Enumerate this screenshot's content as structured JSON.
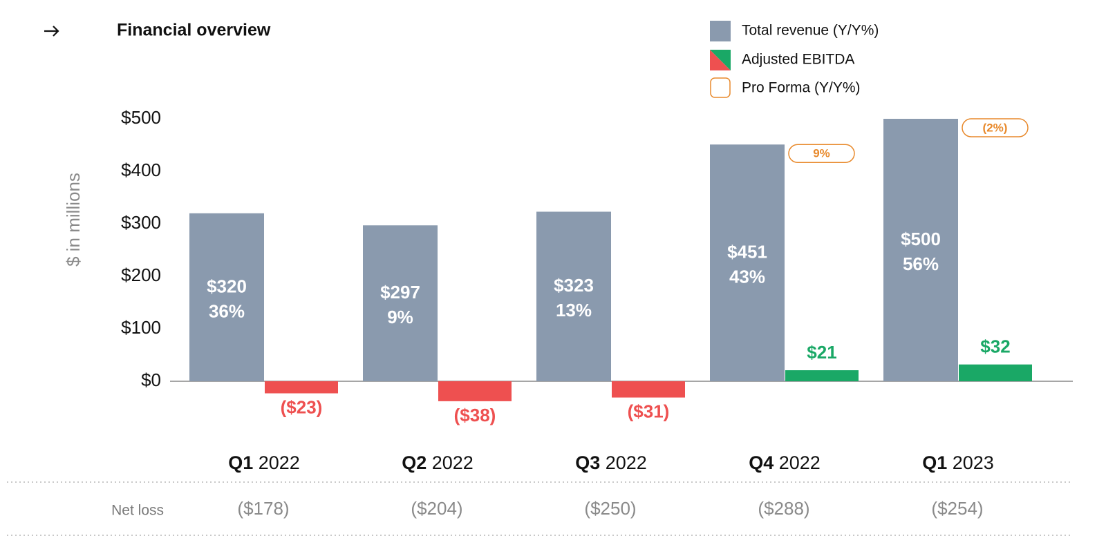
{
  "chart_data": {
    "type": "bar",
    "title": "Financial overview",
    "y_label": "$ in millions",
    "categories": [
      {
        "quarter": "Q1",
        "year": "2022"
      },
      {
        "quarter": "Q2",
        "year": "2022"
      },
      {
        "quarter": "Q3",
        "year": "2022"
      },
      {
        "quarter": "Q4",
        "year": "2022"
      },
      {
        "quarter": "Q1",
        "year": "2023"
      }
    ],
    "ylim": [
      -50,
      500
    ],
    "yticks": [
      {
        "value": 0,
        "label": "$0"
      },
      {
        "value": 100,
        "label": "$100"
      },
      {
        "value": 200,
        "label": "$200"
      },
      {
        "value": 300,
        "label": "$300"
      },
      {
        "value": 400,
        "label": "$400"
      },
      {
        "value": 500,
        "label": "$500"
      }
    ],
    "series": [
      {
        "name": "Total revenue (Y/Y%)",
        "color": "#8a9aae",
        "values": [
          320,
          297,
          323,
          451,
          500
        ],
        "value_labels": [
          "$320",
          "$297",
          "$323",
          "$451",
          "$500"
        ],
        "yoy": [
          36,
          9,
          13,
          43,
          56
        ],
        "yoy_labels": [
          "36%",
          "9%",
          "13%",
          "43%",
          "56%"
        ]
      },
      {
        "name": "Adjusted EBITDA",
        "color": "#ee5050",
        "positive_color": "#1aa866",
        "values": [
          -23,
          -38,
          -31,
          21,
          32
        ],
        "value_labels": [
          "($23)",
          "($38)",
          "($31)",
          "$21",
          "$32"
        ]
      },
      {
        "name": "Pro Forma (Y/Y%)",
        "color": "#e8892b",
        "values": [
          null,
          null,
          null,
          9,
          -2
        ],
        "value_labels": [
          null,
          null,
          null,
          "9%",
          "(2%)"
        ]
      }
    ],
    "net_loss": {
      "label": "Net loss",
      "values": [
        -178,
        -204,
        -250,
        -288,
        -254
      ],
      "value_labels": [
        "($178)",
        "($204)",
        "($250)",
        "($288)",
        "($254)"
      ]
    }
  }
}
